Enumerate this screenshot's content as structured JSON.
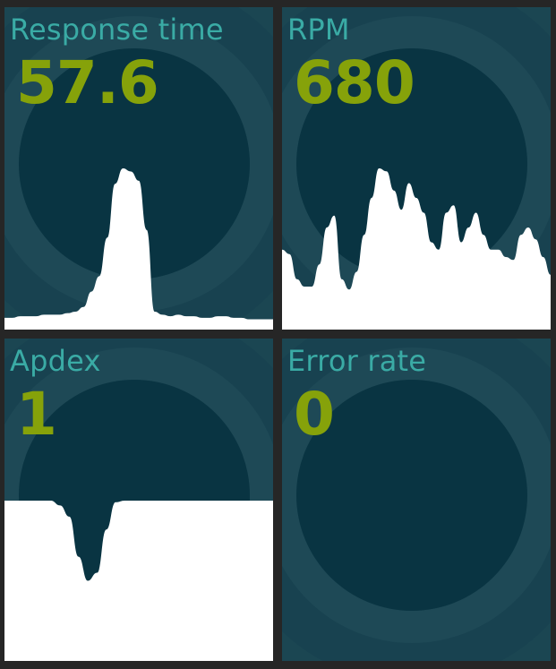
{
  "colors": {
    "background": "#262626",
    "tile": "#1b4652",
    "ring_inner": "#093442",
    "title": "#3aaba5",
    "value": "#86a20a",
    "sparkline": "#ffffff"
  },
  "tiles": [
    {
      "id": "response",
      "title": "Response time",
      "value": "57.6",
      "sparkline": [
        0.03,
        0.03,
        0.04,
        0.04,
        0.04,
        0.05,
        0.05,
        0.05,
        0.06,
        0.07,
        0.1,
        0.2,
        0.3,
        0.55,
        0.9,
        1.0,
        0.98,
        0.92,
        0.6,
        0.07,
        0.05,
        0.04,
        0.05,
        0.04,
        0.04,
        0.03,
        0.03,
        0.04,
        0.04,
        0.03,
        0.03,
        0.02,
        0.02,
        0.02,
        0.02
      ]
    },
    {
      "id": "rpm",
      "title": "RPM",
      "value": "680",
      "sparkline": [
        0.45,
        0.42,
        0.25,
        0.2,
        0.2,
        0.35,
        0.6,
        0.68,
        0.25,
        0.18,
        0.3,
        0.55,
        0.8,
        1.0,
        0.98,
        0.85,
        0.72,
        0.9,
        0.8,
        0.7,
        0.5,
        0.45,
        0.7,
        0.75,
        0.5,
        0.6,
        0.7,
        0.55,
        0.45,
        0.45,
        0.4,
        0.38,
        0.55,
        0.6,
        0.52,
        0.4,
        0.28
      ]
    },
    {
      "id": "apdex",
      "title": "Apdex",
      "value": "1",
      "sparkline": [
        1.0,
        1.0,
        1.0,
        1.0,
        1.0,
        1.0,
        0.97,
        0.9,
        0.65,
        0.5,
        0.55,
        0.82,
        0.99,
        1.0,
        1.0,
        1.0,
        1.0,
        1.0,
        1.0,
        1.0,
        1.0,
        1.0,
        1.0,
        1.0,
        1.0,
        1.0,
        1.0,
        1.0,
        1.0,
        1.0
      ]
    },
    {
      "id": "error",
      "title": "Error rate",
      "value": "0",
      "sparkline": []
    }
  ]
}
